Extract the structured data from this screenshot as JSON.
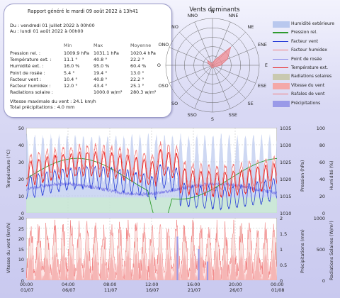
{
  "report": {
    "title": "Rapport généré le mardi 09 août 2022 à 13h41",
    "from": "Du : vendredi 01 juillet 2022 à 00h00",
    "to": "Au : lundi 01 août 2022 à 00h00",
    "col_min": "Min",
    "col_max": "Max",
    "col_avg": "Moyenne",
    "rows": [
      {
        "label": "Pression rel. :",
        "min": "1009.9 hPa",
        "max": "1031.1 hPa",
        "avg": "1020.4 hPa"
      },
      {
        "label": "Température ext. :",
        "min": "11.1 °",
        "max": "40.8 °",
        "avg": "22.2 °"
      },
      {
        "label": "Humidité ext. :",
        "min": "16.0 %",
        "max": "95.0 %",
        "avg": "60.4 %"
      },
      {
        "label": "Point de rosée :",
        "min": "5.4 °",
        "max": "19.4 °",
        "avg": "13.0 °"
      },
      {
        "label": "Facteur vent :",
        "min": "10.4 °",
        "max": "40.8 °",
        "avg": "22.2 °"
      },
      {
        "label": "Facteur humidex :",
        "min": "12.0 °",
        "max": "43.4 °",
        "avg": "25.1 °"
      },
      {
        "label": "Radiations solaire :",
        "min": "",
        "max": "1000.0 w/m²",
        "avg": "280.3 w/m²"
      }
    ],
    "wind_max": "Vitesse maximale du vent : 24.1 km/h",
    "rain_total": "Total précipitations : 4.0 mm"
  },
  "rose": {
    "title": "Vents dominants",
    "directions": [
      "N",
      "NNE",
      "NE",
      "ENE",
      "E",
      "ESE",
      "SE",
      "SSE",
      "S",
      "SSO",
      "SO",
      "OSO",
      "O",
      "ONO",
      "NO",
      "NNO"
    ],
    "values": [
      0.05,
      0.12,
      0.55,
      0.35,
      0.18,
      0.08,
      0.04,
      0.05,
      0.06,
      0.05,
      0.04,
      0.04,
      0.05,
      0.1,
      0.15,
      0.05
    ],
    "color": "#f08a90"
  },
  "legend": [
    {
      "label": "Humidité extérieure",
      "color": "#b9c8ee",
      "kind": "area"
    },
    {
      "label": "Pression rel.",
      "color": "#2e9a2e",
      "kind": "line"
    },
    {
      "label": "Facteur vent",
      "color": "#2a3fd8",
      "kind": "line"
    },
    {
      "label": "Facteur humidex",
      "color": "#f07a7a",
      "kind": "line"
    },
    {
      "label": "Point de rosée",
      "color": "#8888e8",
      "kind": "line"
    },
    {
      "label": "Température ext.",
      "color": "#e82020",
      "kind": "line"
    },
    {
      "label": "Radiations solaires",
      "color": "#c9c9b0",
      "kind": "area"
    },
    {
      "label": "Vitesse du vent",
      "color": "#f4a8a8",
      "kind": "area"
    },
    {
      "label": "Rafales de vent",
      "color": "#f07a7a",
      "kind": "line"
    },
    {
      "label": "Précipitations",
      "color": "#9a9ae8",
      "kind": "area"
    }
  ],
  "chart_data": [
    {
      "type": "line",
      "ylabel": "Température (°C)",
      "ylabel_right1": "Pression (hPa)",
      "ylabel_right2": "Humidité (%)",
      "yticks_left": [
        "50",
        "40",
        "30",
        "20",
        "10",
        "0"
      ],
      "yticks_right1": [
        "1035",
        "1030",
        "1025",
        "1020",
        "1015",
        "1010"
      ],
      "yticks_right2": [
        "100",
        "80",
        "60",
        "40",
        "20",
        "0"
      ],
      "ylim": [
        0,
        50
      ],
      "ylim_right1": [
        1010,
        1035
      ],
      "ylim_right2": [
        0,
        100
      ],
      "grid": true
    },
    {
      "type": "area",
      "ylabel": "Vitesse du vent (km/h)",
      "ylabel_right1": "Précipitations (mm)",
      "ylabel_right2": "Radiations Solaires (W/m²)",
      "yticks_left": [
        "30",
        "25",
        "20",
        "15",
        "10",
        "5",
        "0"
      ],
      "yticks_right1": [
        "2",
        "1.5",
        "1",
        "0.5",
        "0"
      ],
      "yticks_right2": [
        "1000",
        "500",
        "0"
      ],
      "ylim": [
        0,
        30
      ],
      "ylim_right1": [
        0,
        2
      ],
      "ylim_right2": [
        0,
        1000
      ],
      "x_ticks_time": [
        "00:00",
        "04:00",
        "08:00",
        "12:00",
        "16:00",
        "20:00",
        "00:00"
      ],
      "x_ticks_date": [
        "01/07",
        "06/07",
        "11/07",
        "16/07",
        "21/07",
        "26/07",
        "01/08"
      ],
      "grid": true
    }
  ]
}
